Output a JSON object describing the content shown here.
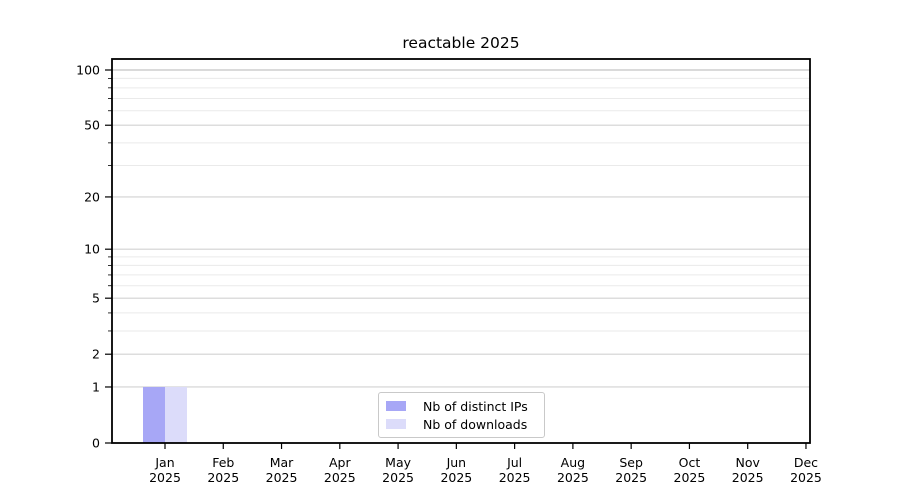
{
  "chart_data": {
    "type": "bar",
    "title": "reactable 2025",
    "year": "2025",
    "categories": [
      "Jan",
      "Feb",
      "Mar",
      "Apr",
      "May",
      "Jun",
      "Jul",
      "Aug",
      "Sep",
      "Oct",
      "Nov",
      "Dec"
    ],
    "series": [
      {
        "name": "Nb of distinct IPs",
        "color": "#a7a7f6",
        "values": [
          1,
          0,
          0,
          0,
          0,
          0,
          0,
          0,
          0,
          0,
          0,
          0
        ]
      },
      {
        "name": "Nb of downloads",
        "color": "#dcdcfa",
        "values": [
          1,
          0,
          0,
          0,
          0,
          0,
          0,
          0,
          0,
          0,
          0,
          0
        ]
      }
    ],
    "xlabel": "",
    "ylabel": "",
    "yscale": "log1p",
    "ylim": [
      0,
      100
    ],
    "yticks": [
      0,
      1,
      2,
      5,
      10,
      20,
      50,
      100
    ],
    "minor_yticks": [
      3,
      4,
      6,
      7,
      8,
      9,
      30,
      40,
      60,
      70,
      80,
      90
    ],
    "grid": "horizontal",
    "legend_position": "bottom-center",
    "colors": {
      "axis": "#000000",
      "grid_major": "#d2d2d2",
      "grid_minor": "#eaeaea",
      "grid_top": "#b4b4b4",
      "background": "#ffffff"
    }
  }
}
